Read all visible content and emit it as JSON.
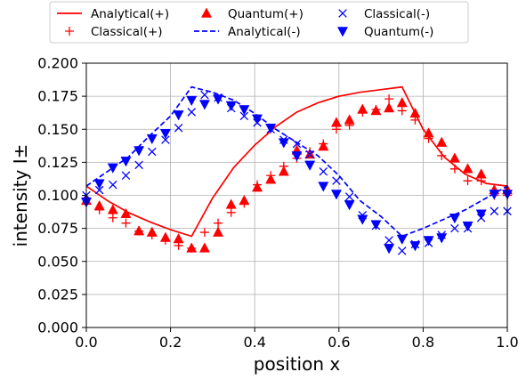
{
  "chart_data": {
    "type": "scatter",
    "title": "",
    "xlabel": "position x",
    "ylabel": "intensity I±",
    "xlim": [
      0.0,
      1.0
    ],
    "ylim": [
      0.0,
      0.2
    ],
    "xticks": [
      0.0,
      0.2,
      0.4,
      0.6,
      0.8,
      1.0
    ],
    "yticks": [
      0.0,
      0.025,
      0.05,
      0.075,
      0.1,
      0.125,
      0.15,
      0.175,
      0.2
    ],
    "xtick_labels": [
      "0.0",
      "0.2",
      "0.4",
      "0.6",
      "0.8",
      "1.0"
    ],
    "ytick_labels": [
      "0.000",
      "0.025",
      "0.050",
      "0.075",
      "0.100",
      "0.125",
      "0.150",
      "0.175",
      "0.200"
    ],
    "grid": true,
    "legend_position": "top-outside",
    "series": [
      {
        "name": "Analytical(+)",
        "kind": "line",
        "style": "solid",
        "marker": "",
        "color": "#ff0000",
        "x": [
          0.0,
          0.05,
          0.1,
          0.15,
          0.2,
          0.25,
          0.3,
          0.35,
          0.4,
          0.45,
          0.5,
          0.55,
          0.6,
          0.65,
          0.7,
          0.75,
          0.8,
          0.85,
          0.9,
          0.95,
          1.0
        ],
        "y": [
          0.107,
          0.096,
          0.087,
          0.08,
          0.074,
          0.069,
          0.098,
          0.121,
          0.138,
          0.152,
          0.163,
          0.17,
          0.175,
          0.178,
          0.18,
          0.182,
          0.15,
          0.129,
          0.116,
          0.109,
          0.107
        ]
      },
      {
        "name": "Classical(+)",
        "kind": "scatter",
        "style": "",
        "marker": "plus",
        "color": "#ff0000",
        "x": [
          0.0,
          0.031,
          0.063,
          0.094,
          0.125,
          0.156,
          0.188,
          0.219,
          0.25,
          0.281,
          0.313,
          0.344,
          0.375,
          0.406,
          0.438,
          0.469,
          0.5,
          0.531,
          0.563,
          0.594,
          0.625,
          0.656,
          0.688,
          0.719,
          0.75,
          0.781,
          0.813,
          0.844,
          0.875,
          0.906,
          0.938,
          0.969,
          1.0
        ],
        "y": [
          0.098,
          0.089,
          0.083,
          0.079,
          0.073,
          0.07,
          0.066,
          0.062,
          0.06,
          0.072,
          0.079,
          0.087,
          0.094,
          0.108,
          0.115,
          0.122,
          0.128,
          0.133,
          0.139,
          0.15,
          0.153,
          0.163,
          0.165,
          0.173,
          0.164,
          0.157,
          0.143,
          0.13,
          0.12,
          0.111,
          0.111,
          0.1,
          0.1
        ]
      },
      {
        "name": "Quantum(+)",
        "kind": "scatter",
        "style": "",
        "marker": "triangle-up",
        "color": "#ff0000",
        "x": [
          0.0,
          0.031,
          0.063,
          0.094,
          0.125,
          0.156,
          0.188,
          0.219,
          0.25,
          0.281,
          0.313,
          0.344,
          0.375,
          0.406,
          0.438,
          0.469,
          0.5,
          0.531,
          0.563,
          0.594,
          0.625,
          0.656,
          0.688,
          0.719,
          0.75,
          0.781,
          0.813,
          0.844,
          0.875,
          0.906,
          0.938,
          0.969,
          1.0
        ],
        "y": [
          0.096,
          0.092,
          0.089,
          0.086,
          0.073,
          0.072,
          0.068,
          0.067,
          0.06,
          0.06,
          0.072,
          0.093,
          0.096,
          0.106,
          0.112,
          0.118,
          0.134,
          0.131,
          0.137,
          0.155,
          0.157,
          0.165,
          0.164,
          0.166,
          0.17,
          0.162,
          0.147,
          0.14,
          0.128,
          0.12,
          0.116,
          0.104,
          0.104
        ]
      },
      {
        "name": "Analytical(-)",
        "kind": "line",
        "style": "dashed",
        "marker": "",
        "color": "#0000ff",
        "x": [
          0.0,
          0.05,
          0.1,
          0.15,
          0.2,
          0.25,
          0.3,
          0.35,
          0.4,
          0.45,
          0.5,
          0.55,
          0.6,
          0.65,
          0.7,
          0.75,
          0.8,
          0.85,
          0.9,
          0.95,
          1.0
        ],
        "y": [
          0.107,
          0.118,
          0.129,
          0.145,
          0.16,
          0.182,
          0.178,
          0.172,
          0.162,
          0.15,
          0.14,
          0.13,
          0.115,
          0.096,
          0.084,
          0.069,
          0.075,
          0.082,
          0.089,
          0.098,
          0.107
        ]
      },
      {
        "name": "Classical(-)",
        "kind": "scatter",
        "style": "",
        "marker": "x",
        "color": "#0000ff",
        "x": [
          0.0,
          0.031,
          0.063,
          0.094,
          0.125,
          0.156,
          0.188,
          0.219,
          0.25,
          0.281,
          0.313,
          0.344,
          0.375,
          0.406,
          0.438,
          0.469,
          0.5,
          0.531,
          0.563,
          0.594,
          0.625,
          0.656,
          0.688,
          0.719,
          0.75,
          0.781,
          0.813,
          0.844,
          0.875,
          0.906,
          0.938,
          0.969,
          1.0
        ],
        "y": [
          0.1,
          0.104,
          0.108,
          0.115,
          0.123,
          0.133,
          0.142,
          0.151,
          0.163,
          0.176,
          0.174,
          0.166,
          0.16,
          0.155,
          0.15,
          0.142,
          0.139,
          0.131,
          0.118,
          0.111,
          0.099,
          0.085,
          0.077,
          0.066,
          0.058,
          0.063,
          0.064,
          0.07,
          0.075,
          0.075,
          0.083,
          0.088,
          0.088
        ]
      },
      {
        "name": "Quantum(-)",
        "kind": "scatter",
        "style": "",
        "marker": "triangle-down",
        "color": "#0000ff",
        "x": [
          0.0,
          0.031,
          0.063,
          0.094,
          0.125,
          0.156,
          0.188,
          0.219,
          0.25,
          0.281,
          0.313,
          0.344,
          0.375,
          0.406,
          0.438,
          0.469,
          0.5,
          0.531,
          0.563,
          0.594,
          0.625,
          0.656,
          0.688,
          0.719,
          0.75,
          0.781,
          0.813,
          0.844,
          0.875,
          0.906,
          0.938,
          0.969,
          1.0
        ],
        "y": [
          0.095,
          0.109,
          0.121,
          0.126,
          0.134,
          0.143,
          0.147,
          0.161,
          0.172,
          0.169,
          0.173,
          0.168,
          0.165,
          0.158,
          0.151,
          0.14,
          0.13,
          0.123,
          0.107,
          0.101,
          0.093,
          0.082,
          0.078,
          0.06,
          0.067,
          0.062,
          0.066,
          0.068,
          0.083,
          0.077,
          0.086,
          0.101,
          0.101
        ]
      }
    ]
  }
}
